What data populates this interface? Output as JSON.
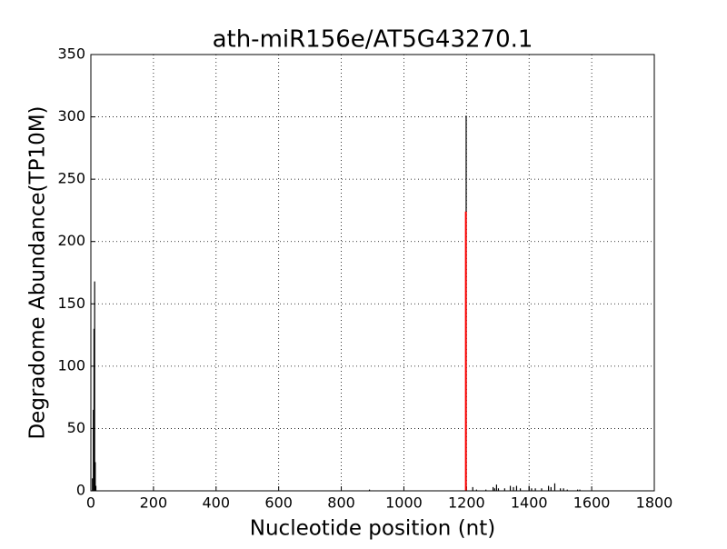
{
  "chart_data": {
    "type": "stem",
    "title": "ath-miR156e/AT5G43270.1",
    "x_label": "Nucleotide position (nt)",
    "y_label": "Degradome Abundance(TP10M)",
    "xlim": [
      0,
      1800
    ],
    "xticks": [
      0,
      200,
      400,
      600,
      800,
      1000,
      1200,
      1400,
      1600,
      1800
    ],
    "ylim": [
      0,
      350
    ],
    "yticks": [
      0,
      50,
      100,
      150,
      200,
      250,
      300,
      350
    ],
    "grid": true,
    "series": [
      {
        "color": "#000000",
        "x": [
          5,
          8,
          10,
          12,
          14,
          16,
          890,
          1199,
          1220,
          1232,
          1262,
          1285,
          1290,
          1296,
          1302,
          1322,
          1340,
          1350,
          1360,
          1372,
          1400,
          1408,
          1420,
          1440,
          1462,
          1470,
          1482,
          1500,
          1510,
          1522,
          1555,
          1562
        ],
        "values": [
          10,
          65,
          130,
          168,
          23,
          4,
          1,
          301,
          3,
          1,
          1,
          3,
          2,
          5,
          2,
          2,
          4,
          3,
          4,
          2,
          4,
          2,
          2,
          2,
          4,
          3,
          6,
          2,
          2,
          1,
          1,
          1
        ]
      },
      {
        "color": "#ff0000",
        "x": [
          1198
        ],
        "values": [
          224
        ]
      }
    ]
  }
}
